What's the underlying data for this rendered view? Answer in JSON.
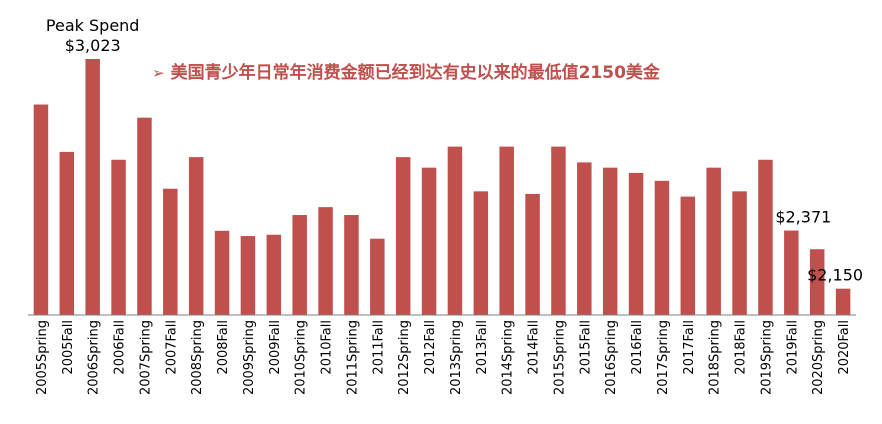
{
  "headline": {
    "bullet": "➢",
    "text": "美国青少年日常年消费金额已经到达有史以来的最低值2150美金"
  },
  "chart_data": {
    "type": "bar",
    "color": "#c0504d",
    "title": "",
    "xlabel": "",
    "ylabel": "",
    "categories": [
      "2005Spring",
      "2005Fall",
      "2006Spring",
      "2006Fall",
      "2007Spring",
      "2007Fall",
      "2008Spring",
      "2008Fall",
      "2009Spring",
      "2009Fall",
      "2010Spring",
      "2010Fall",
      "2011Spring",
      "2011Fall",
      "2012Spring",
      "2012Fall",
      "2013Spring",
      "2013Fall",
      "2014Spring",
      "2014Fall",
      "2015Spring",
      "2015Fall",
      "2016Spring",
      "2016Fall",
      "2017Spring",
      "2017Fall",
      "2018Spring",
      "2018Fall",
      "2019Spring",
      "2019Fall",
      "2020Spring",
      "2020Fall"
    ],
    "values": [
      2850,
      2670,
      3023,
      2640,
      2800,
      2530,
      2650,
      2370,
      2350,
      2355,
      2430,
      2460,
      2430,
      2340,
      2650,
      2610,
      2690,
      2520,
      2690,
      2510,
      2690,
      2630,
      2610,
      2590,
      2560,
      2500,
      2610,
      2520,
      2640,
      2371,
      2300,
      2150
    ],
    "ylim": [
      2050,
      3023
    ],
    "annotations": [
      {
        "category": "2006Spring",
        "lines": [
          "Peak Spend",
          "$3,023"
        ]
      },
      {
        "category": "2019Fall",
        "lines": [
          "$2,371"
        ]
      },
      {
        "category": "2020Fall",
        "lines": [
          "$2,150"
        ]
      }
    ]
  }
}
